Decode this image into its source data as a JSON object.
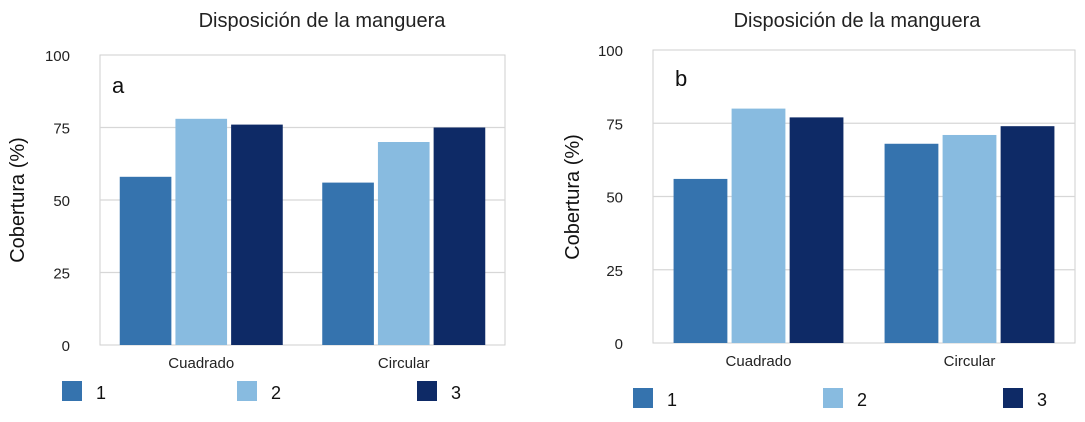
{
  "chart_data": [
    {
      "type": "bar",
      "title": "Disposición de la manguera",
      "panel_label": "a",
      "ylabel": "Cobertura (%)",
      "xlabel": "",
      "categories": [
        "Cuadrado",
        "Circular"
      ],
      "yticks": [
        0,
        25,
        50,
        75,
        100
      ],
      "ylim": [
        0,
        100
      ],
      "grid": true,
      "legend_position": "bottom",
      "series": [
        {
          "name": "1",
          "color": "#3573ae",
          "values": [
            58,
            56
          ]
        },
        {
          "name": "2",
          "color": "#88bbe0",
          "values": [
            78,
            70
          ]
        },
        {
          "name": "3",
          "color": "#0e2a66",
          "values": [
            76,
            75
          ]
        }
      ]
    },
    {
      "type": "bar",
      "title": "Disposición de la manguera",
      "panel_label": "b",
      "ylabel": "Cobertura (%)",
      "xlabel": "",
      "categories": [
        "Cuadrado",
        "Circular"
      ],
      "yticks": [
        0,
        25,
        50,
        75,
        100
      ],
      "ylim": [
        0,
        100
      ],
      "grid": true,
      "legend_position": "bottom",
      "series": [
        {
          "name": "1",
          "color": "#3573ae",
          "values": [
            56,
            68
          ]
        },
        {
          "name": "2",
          "color": "#88bbe0",
          "values": [
            80,
            71
          ]
        },
        {
          "name": "3",
          "color": "#0e2a66",
          "values": [
            77,
            74
          ]
        }
      ]
    }
  ]
}
